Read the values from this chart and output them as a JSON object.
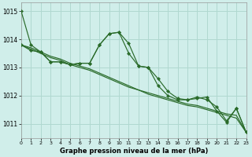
{
  "xlabel": "Graphe pression niveau de la mer (hPa)",
  "ylim": [
    1010.5,
    1015.3
  ],
  "xlim": [
    0,
    23
  ],
  "yticks": [
    1011,
    1012,
    1013,
    1014,
    1015
  ],
  "xticks": [
    0,
    1,
    2,
    3,
    4,
    5,
    6,
    7,
    8,
    9,
    10,
    11,
    12,
    13,
    14,
    15,
    16,
    17,
    18,
    19,
    20,
    21,
    22,
    23
  ],
  "bg_color": "#d0eeea",
  "grid_color": "#b0d8d0",
  "line_color": "#2a6b2a",
  "series_with_markers": [
    [
      1015.0,
      1013.8,
      1013.55,
      1013.2,
      1013.2,
      1013.1,
      1013.15,
      1013.15,
      1013.8,
      1014.2,
      1014.25,
      1013.85,
      1013.05,
      1013.0,
      1012.6,
      1012.15,
      1011.9,
      1011.85,
      1011.95,
      1011.85,
      1011.6,
      1011.1,
      1011.55,
      1010.7
    ],
    [
      1013.8,
      1013.6,
      1013.55,
      1013.2,
      1013.2,
      1013.1,
      1013.15,
      1013.15,
      1013.8,
      1014.2,
      1014.25,
      1013.5,
      1013.05,
      1013.0,
      1012.35,
      1012.0,
      1011.85,
      1011.85,
      1011.9,
      1011.95,
      1011.45,
      1011.05,
      1011.55,
      1010.7
    ]
  ],
  "series_no_markers": [
    [
      1013.8,
      1013.7,
      1013.55,
      1013.4,
      1013.3,
      1013.15,
      1013.05,
      1012.95,
      1012.8,
      1012.65,
      1012.5,
      1012.35,
      1012.2,
      1012.1,
      1012.0,
      1011.9,
      1011.8,
      1011.7,
      1011.65,
      1011.55,
      1011.45,
      1011.35,
      1011.3,
      1010.7
    ],
    [
      1013.8,
      1013.65,
      1013.5,
      1013.35,
      1013.25,
      1013.1,
      1013.0,
      1012.9,
      1012.75,
      1012.6,
      1012.45,
      1012.3,
      1012.2,
      1012.05,
      1011.95,
      1011.85,
      1011.75,
      1011.65,
      1011.6,
      1011.5,
      1011.4,
      1011.3,
      1011.2,
      1010.7
    ]
  ]
}
